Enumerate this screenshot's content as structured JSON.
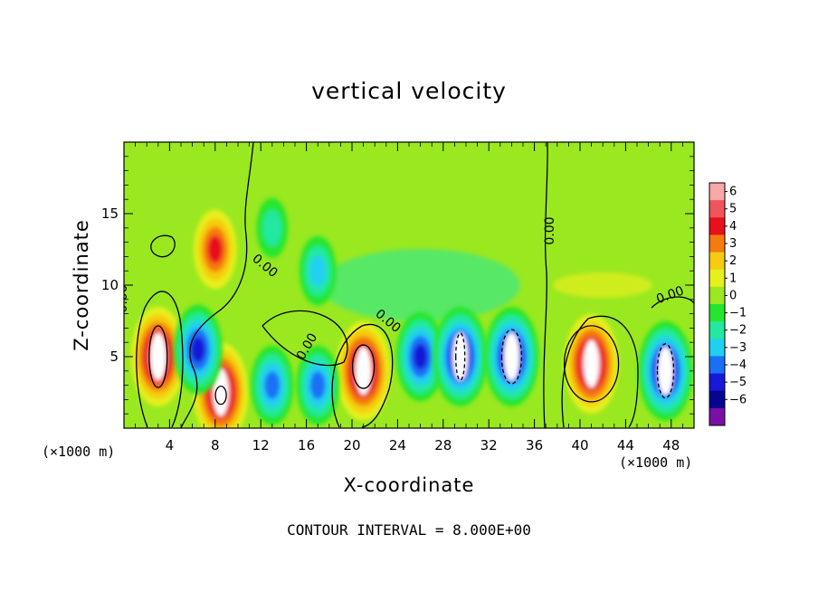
{
  "chart_data": {
    "type": "heatmap",
    "title": "vertical velocity",
    "xlabel": "X-coordinate",
    "ylabel": "Z-coordinate",
    "x_unit": "(×1000 m)",
    "z_unit": "(×1000 m)",
    "xlim": [
      0,
      50
    ],
    "ylim": [
      0,
      20
    ],
    "x_ticks": [
      4,
      8,
      12,
      16,
      20,
      24,
      28,
      32,
      36,
      40,
      44,
      48
    ],
    "x_tick_labels": [
      "4",
      "8",
      "12",
      "16",
      "20",
      "24",
      "28",
      "32",
      "36",
      "40",
      "44",
      "48"
    ],
    "y_ticks": [
      5,
      10,
      15
    ],
    "y_tick_labels": [
      "5",
      "10",
      "15"
    ],
    "colorbar": {
      "levels": [
        6,
        5,
        4,
        3,
        2,
        1,
        0,
        -1,
        -2,
        -3,
        -4,
        -5,
        -6
      ],
      "labels": [
        "6",
        "5",
        "4",
        "3",
        "2",
        "1",
        "0",
        "−1",
        "−2",
        "−3",
        "−4",
        "−5",
        "−6"
      ],
      "colors": [
        "#f7a8a8",
        "#f2545b",
        "#e8101a",
        "#f57a0f",
        "#f5cc10",
        "#e6f01a",
        "#9ae820",
        "#25e62e",
        "#22e8a0",
        "#20d0f0",
        "#1a70f5",
        "#1818d8",
        "#050590",
        "#7a0fa8"
      ]
    },
    "contour_labels": [
      "0.00",
      "0.00",
      "0.00",
      "0.00",
      "0.00",
      "0.00"
    ],
    "contour_interval_text": "CONTOUR INTERVAL = 8.000E+00",
    "blobs": [
      {
        "x": 3.0,
        "z": 5.0,
        "w": 6,
        "kind": "updraft"
      },
      {
        "x": 8.0,
        "z": 12.5,
        "w": 4,
        "kind": "updraft"
      },
      {
        "x": 8.5,
        "z": 2.5,
        "w": 6,
        "kind": "updraft"
      },
      {
        "x": 21.0,
        "z": 4.0,
        "w": 6,
        "kind": "updraft"
      },
      {
        "x": 41.0,
        "z": 4.5,
        "w": 6,
        "kind": "updraft"
      },
      {
        "x": 6.5,
        "z": 5.5,
        "w": -5,
        "kind": "downdraft"
      },
      {
        "x": 13.0,
        "z": 3.0,
        "w": -4,
        "kind": "downdraft"
      },
      {
        "x": 17.0,
        "z": 3.0,
        "w": -4,
        "kind": "downdraft"
      },
      {
        "x": 26.0,
        "z": 5.0,
        "w": -5,
        "kind": "downdraft"
      },
      {
        "x": 29.5,
        "z": 5.0,
        "w": -6,
        "kind": "downdraft"
      },
      {
        "x": 34.0,
        "z": 5.0,
        "w": -6,
        "kind": "downdraft"
      },
      {
        "x": 47.5,
        "z": 4.0,
        "w": -6,
        "kind": "downdraft"
      },
      {
        "x": 17.0,
        "z": 11.0,
        "w": -3,
        "kind": "downdraft"
      },
      {
        "x": 13.0,
        "z": 14.0,
        "w": -2,
        "kind": "downdraft"
      }
    ]
  }
}
